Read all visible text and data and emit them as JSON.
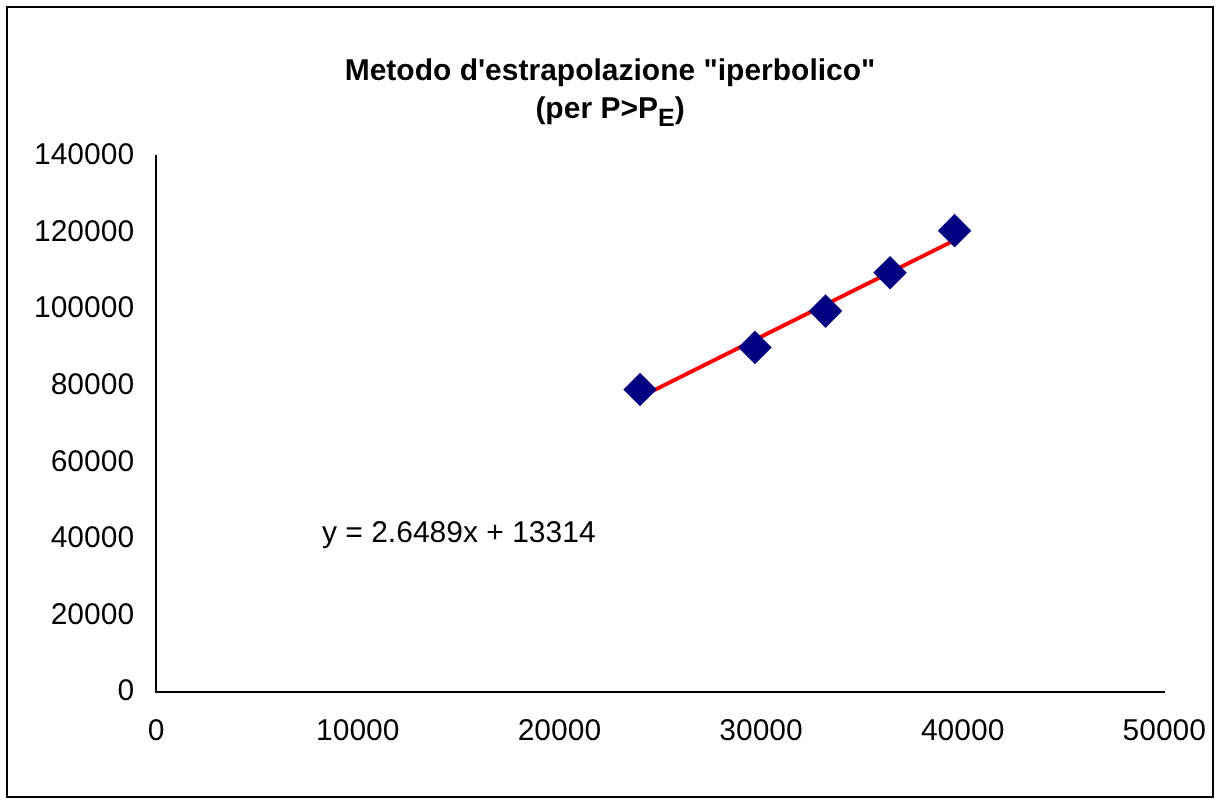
{
  "chart_data": {
    "type": "scatter",
    "title": [
      "Metodo d'estrapolazione \"iperbolico\"",
      "(per P>P$_{E}$)"
    ],
    "series": [
      {
        "type": "scatter",
        "color": "#000080",
        "marker": "diamond",
        "x": [
          24000,
          29700,
          33200,
          36400,
          39600
        ],
        "values": [
          79000,
          90000,
          99500,
          109500,
          120500
        ]
      },
      {
        "type": "line",
        "color": "#ff0000",
        "marker": "none",
        "x": [
          24000,
          39600
        ],
        "values": [
          77000,
          118000
        ]
      }
    ],
    "xlim": [
      0,
      50000
    ],
    "xticks": [
      0,
      10000,
      20000,
      30000,
      40000,
      50000
    ],
    "ylim": [
      0,
      140000
    ],
    "yticks": [
      0,
      20000,
      40000,
      60000,
      80000,
      100000,
      120000,
      140000
    ],
    "grid": false,
    "legend": false,
    "annotations": [
      "y = 2.6489x + 13314"
    ]
  }
}
